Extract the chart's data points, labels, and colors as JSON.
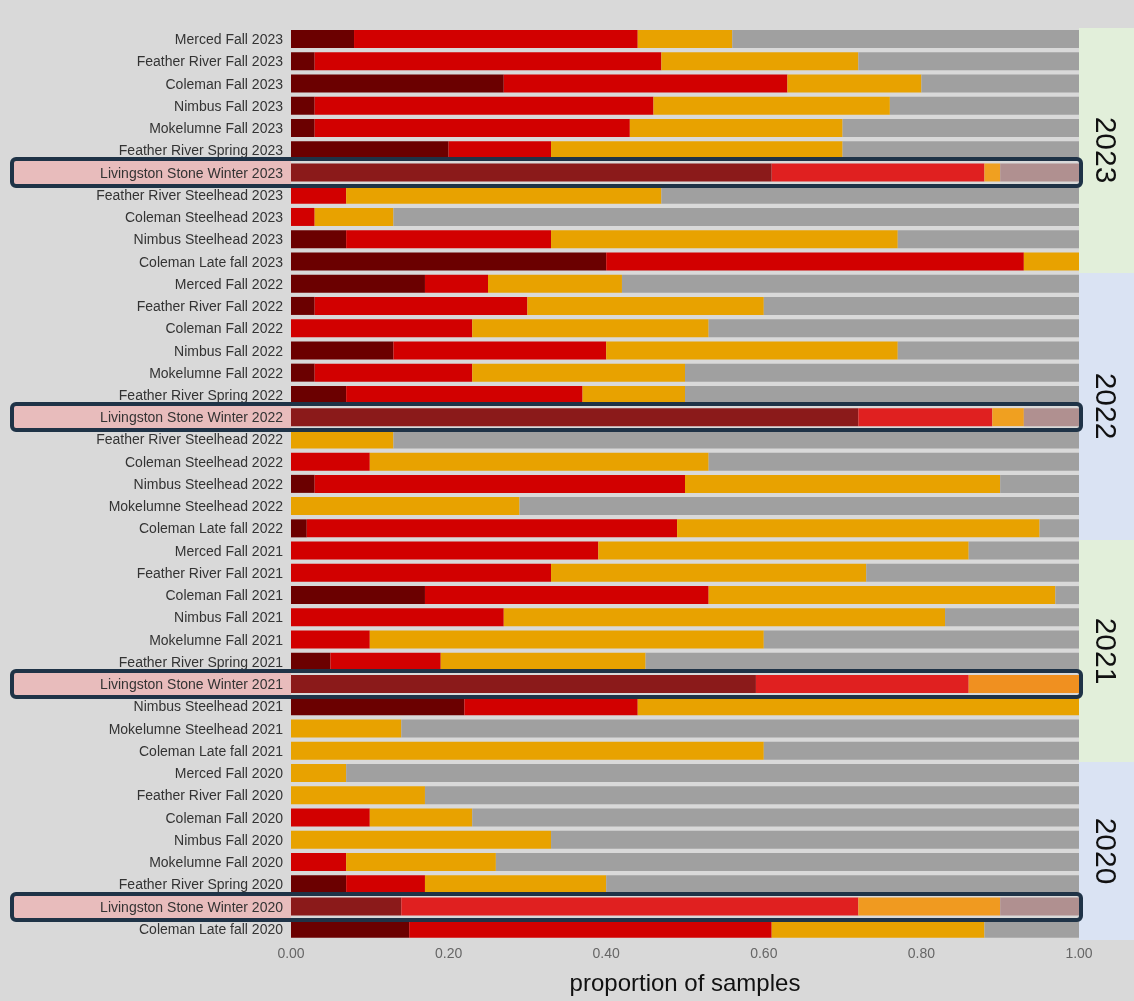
{
  "chart_data": {
    "type": "bar",
    "orientation": "horizontal",
    "stacked": true,
    "xlabel": "proportion of samples",
    "xlim": [
      0,
      1
    ],
    "xticks": [
      {
        "value": 0,
        "label": "0.00"
      },
      {
        "value": 0.2,
        "label": "0.20"
      },
      {
        "value": 0.4,
        "label": "0.40"
      },
      {
        "value": 0.6,
        "label": "0.60"
      },
      {
        "value": 0.8,
        "label": "0.80"
      },
      {
        "value": 1,
        "label": "1.00"
      }
    ],
    "grid": false,
    "legend": false,
    "annotations": [
      "2023",
      "2022",
      "2021",
      "2020"
    ],
    "categories": [
      "Merced Fall 2023",
      "Feather River Fall 2023",
      "Coleman Fall 2023",
      "Nimbus Fall 2023",
      "Mokelumne Fall 2023",
      "Feather River Spring 2023",
      "Livingston Stone Winter 2023",
      "Feather River Steelhead 2023",
      "Coleman Steelhead 2023",
      "Nimbus Steelhead 2023",
      "Coleman Late fall 2023",
      "Merced Fall 2022",
      "Feather River Fall 2022",
      "Coleman Fall 2022",
      "Nimbus Fall 2022",
      "Mokelumne Fall 2022",
      "Feather River Spring 2022",
      "Livingston Stone Winter 2022",
      "Feather River Steelhead 2022",
      "Coleman Steelhead 2022",
      "Nimbus Steelhead 2022",
      "Mokelumne Steelhead 2022",
      "Coleman Late fall 2022",
      "Merced Fall 2021",
      "Feather River Fall 2021",
      "Coleman Fall 2021",
      "Nimbus Fall 2021",
      "Mokelumne Fall 2021",
      "Feather River Spring 2021",
      "Livingston Stone Winter 2021",
      "Nimbus Steelhead 2021",
      "Mokelumne Steelhead 2021",
      "Coleman Late fall 2021",
      "Merced Fall 2020",
      "Feather River Fall 2020",
      "Coleman Fall 2020",
      "Nimbus Fall 2020",
      "Mokelumne Fall 2020",
      "Feather River Spring 2020",
      "Livingston Stone Winter 2020",
      "Coleman Late fall 2020"
    ],
    "series": [
      {
        "colors": [
          "#6b0000",
          "#6b0000",
          "#6b0000",
          "#6b0000",
          "#6b0000",
          "#6b0000",
          "#8b1a1a",
          "#6b0000",
          "#6b0000",
          "#6b0000",
          "#6b0000",
          "#6b0000",
          "#6b0000",
          "#6b0000",
          "#6b0000",
          "#6b0000",
          "#6b0000",
          "#8b1a1a",
          "#6b0000",
          "#6b0000",
          "#6b0000",
          "#6b0000",
          "#6b0000",
          "#6b0000",
          "#6b0000",
          "#6b0000",
          "#6b0000",
          "#6b0000",
          "#6b0000",
          "#8b1a1a",
          "#6b0000",
          "#6b0000",
          "#6b0000",
          "#6b0000",
          "#6b0000",
          "#6b0000",
          "#6b0000",
          "#6b0000",
          "#6b0000",
          "#8b1a1a",
          "#6b0000"
        ],
        "values": [
          0.08,
          0.03,
          0.27,
          0.03,
          0.03,
          0.2,
          0.61,
          0,
          0,
          0.07,
          0.4,
          0.17,
          0.03,
          0,
          0.13,
          0.03,
          0.07,
          0.72,
          0,
          0,
          0.03,
          0,
          0.02,
          0,
          0,
          0.17,
          0,
          0,
          0.05,
          0.59,
          0.22,
          0,
          0,
          0,
          0,
          0,
          0,
          0,
          0.07,
          0.14,
          0.15
        ]
      },
      {
        "colors": [
          "#d20000",
          "#d20000",
          "#d20000",
          "#d20000",
          "#d20000",
          "#d20000",
          "#e02020",
          "#d20000",
          "#d20000",
          "#d20000",
          "#d20000",
          "#d20000",
          "#d20000",
          "#d20000",
          "#d20000",
          "#d20000",
          "#d20000",
          "#e02020",
          "#d20000",
          "#d20000",
          "#d20000",
          "#d20000",
          "#d20000",
          "#d20000",
          "#d20000",
          "#d20000",
          "#d20000",
          "#d20000",
          "#d20000",
          "#e02020",
          "#d20000",
          "#d20000",
          "#d20000",
          "#d20000",
          "#d20000",
          "#d20000",
          "#d20000",
          "#d20000",
          "#d20000",
          "#e02020",
          "#d20000"
        ],
        "values": [
          0.36,
          0.44,
          0.36,
          0.43,
          0.4,
          0.13,
          0.27,
          0.07,
          0.03,
          0.26,
          0.53,
          0.08,
          0.27,
          0.23,
          0.27,
          0.2,
          0.3,
          0.17,
          0,
          0.1,
          0.47,
          0,
          0.47,
          0.39,
          0.33,
          0.36,
          0.27,
          0.1,
          0.14,
          0.27,
          0.22,
          0,
          0,
          0,
          0,
          0.1,
          0,
          0.07,
          0.1,
          0.58,
          0.46
        ]
      },
      {
        "colors": [
          "#e8a200",
          "#e8a200",
          "#e8a200",
          "#e8a200",
          "#e8a200",
          "#e8a200",
          "#f0a020",
          "#e8a200",
          "#e8a200",
          "#e8a200",
          "#e8a200",
          "#e8a200",
          "#e8a200",
          "#e8a200",
          "#e8a200",
          "#e8a200",
          "#e8a200",
          "#f0a020",
          "#e8a200",
          "#e8a200",
          "#e8a200",
          "#e8a200",
          "#e8a200",
          "#e8a200",
          "#e8a200",
          "#e8a200",
          "#e8a200",
          "#e8a200",
          "#e8a200",
          "#f09020",
          "#e8a200",
          "#e8a200",
          "#e8a200",
          "#e8a200",
          "#e8a200",
          "#e8a200",
          "#e8a200",
          "#e8a200",
          "#e8a200",
          "#f09a20",
          "#e8a200"
        ],
        "values": [
          0.12,
          0.25,
          0.17,
          0.3,
          0.27,
          0.37,
          0.02,
          0.4,
          0.1,
          0.44,
          0.07,
          0.17,
          0.3,
          0.3,
          0.37,
          0.27,
          0.13,
          0.04,
          0.13,
          0.43,
          0.4,
          0.29,
          0.46,
          0.47,
          0.4,
          0.44,
          0.56,
          0.5,
          0.26,
          0.14,
          0.56,
          0.14,
          0.6,
          0.07,
          0.17,
          0.13,
          0.33,
          0.19,
          0.23,
          0.18,
          0.27
        ]
      },
      {
        "colors": [
          "#a0a0a0",
          "#a0a0a0",
          "#a0a0a0",
          "#a0a0a0",
          "#a0a0a0",
          "#a0a0a0",
          "#b09090",
          "#a0a0a0",
          "#a0a0a0",
          "#a0a0a0",
          "#a0a0a0",
          "#a0a0a0",
          "#a0a0a0",
          "#a0a0a0",
          "#a0a0a0",
          "#a0a0a0",
          "#a0a0a0",
          "#b09090",
          "#a0a0a0",
          "#a0a0a0",
          "#a0a0a0",
          "#a0a0a0",
          "#a0a0a0",
          "#a0a0a0",
          "#a0a0a0",
          "#a0a0a0",
          "#a0a0a0",
          "#a0a0a0",
          "#a0a0a0",
          "#b09090",
          "#a0a0a0",
          "#a0a0a0",
          "#a0a0a0",
          "#a0a0a0",
          "#a0a0a0",
          "#a0a0a0",
          "#a0a0a0",
          "#a0a0a0",
          "#a0a0a0",
          "#b09090",
          "#a0a0a0"
        ],
        "values": [
          0.44,
          0.28,
          0.2,
          0.24,
          0.3,
          0.3,
          0.1,
          0.53,
          0.87,
          0.23,
          0,
          0.58,
          0.4,
          0.47,
          0.23,
          0.5,
          0.5,
          0.07,
          0.87,
          0.47,
          0.1,
          0.71,
          0.05,
          0.14,
          0.27,
          0.03,
          0.17,
          0.4,
          0.55,
          0,
          0,
          0.86,
          0.4,
          0.93,
          0.83,
          0.77,
          0.67,
          0.74,
          0.6,
          0.1,
          0.12
        ]
      }
    ]
  }
}
